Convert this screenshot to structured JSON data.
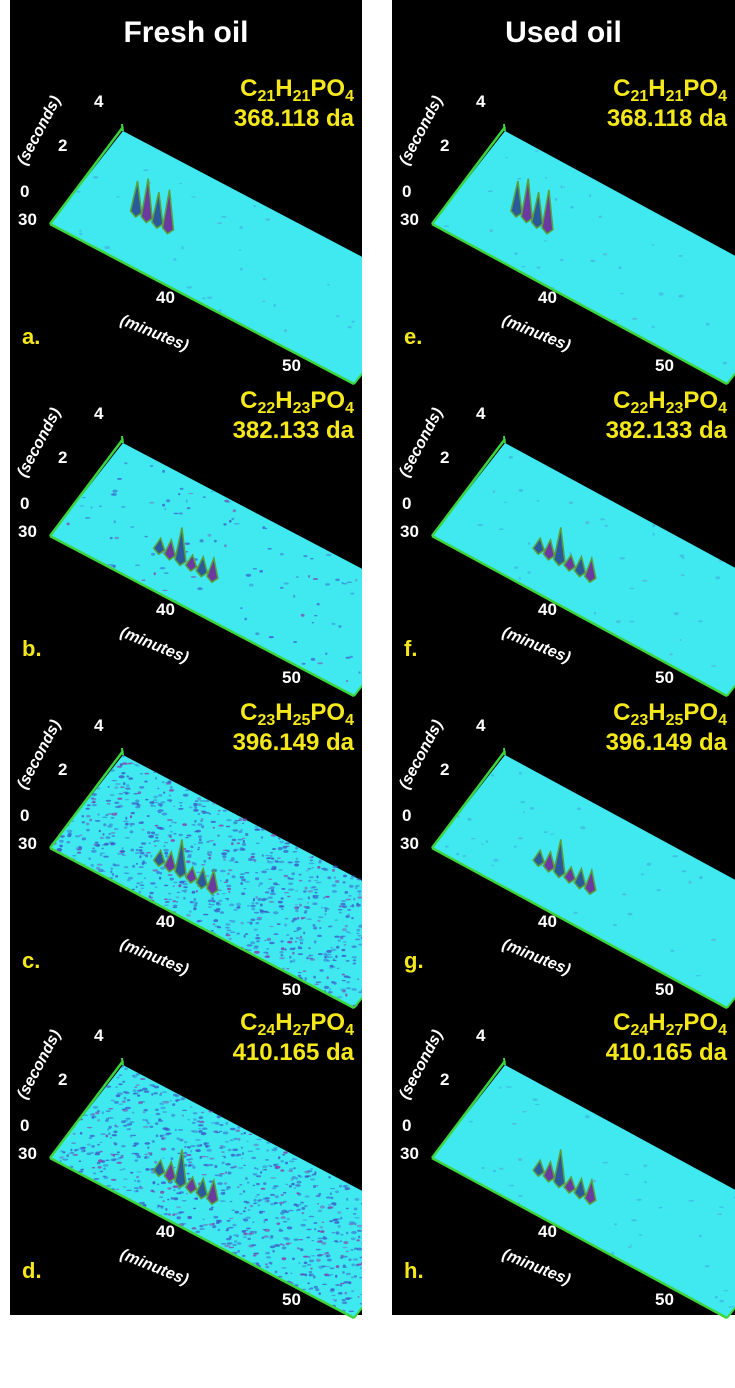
{
  "columns": [
    {
      "title": "Fresh oil",
      "panels": [
        {
          "label": "a.",
          "formula": {
            "c": "21",
            "h": "21",
            "rest": "PO",
            "o": "4"
          },
          "mass": "368.118 da"
        },
        {
          "label": "b.",
          "formula": {
            "c": "22",
            "h": "23",
            "rest": "PO",
            "o": "4"
          },
          "mass": "382.133 da"
        },
        {
          "label": "c.",
          "formula": {
            "c": "23",
            "h": "25",
            "rest": "PO",
            "o": "4"
          },
          "mass": "396.149 da"
        },
        {
          "label": "d.",
          "formula": {
            "c": "24",
            "h": "27",
            "rest": "PO",
            "o": "4"
          },
          "mass": "410.165 da"
        }
      ]
    },
    {
      "title": "Used oil",
      "panels": [
        {
          "label": "e.",
          "formula": {
            "c": "21",
            "h": "21",
            "rest": "PO",
            "o": "4"
          },
          "mass": "368.118 da"
        },
        {
          "label": "f.",
          "formula": {
            "c": "22",
            "h": "23",
            "rest": "PO",
            "o": "4"
          },
          "mass": "382.133 da"
        },
        {
          "label": "g.",
          "formula": {
            "c": "23",
            "h": "25",
            "rest": "PO",
            "o": "4"
          },
          "mass": "396.149 da"
        },
        {
          "label": "h.",
          "formula": {
            "c": "24",
            "h": "27",
            "rest": "PO",
            "o": "4"
          },
          "mass": "410.165 da"
        }
      ]
    }
  ],
  "axes": {
    "y_label": "(seconds)",
    "y_ticks": [
      "4",
      "2",
      "0"
    ],
    "x_label": "(minutes)",
    "x_ticks": [
      "30",
      "40",
      "50"
    ]
  },
  "colors": {
    "background": "#000000",
    "plane": "#40e8f0",
    "axis": "#3cd63c",
    "highlight_text": "#f4e81a",
    "text": "#ffffff"
  }
}
